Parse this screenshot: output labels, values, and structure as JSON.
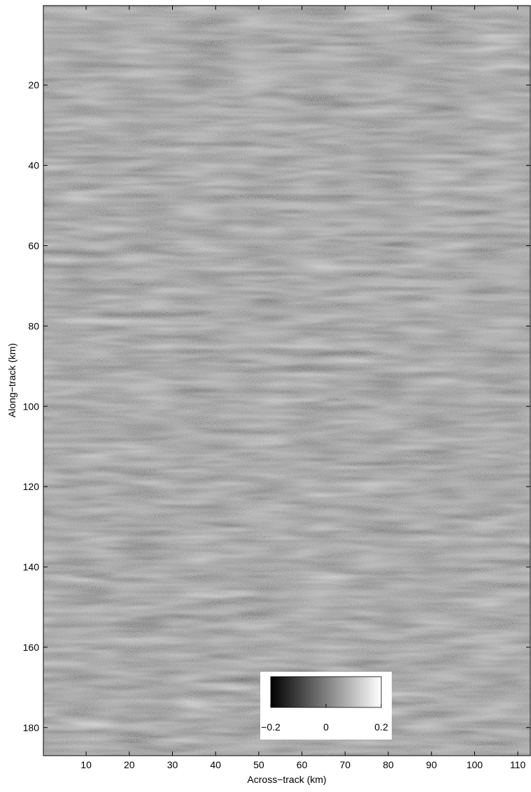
{
  "chart_data": {
    "type": "heatmap",
    "xlabel": "Across−track (km)",
    "ylabel": "Along−track (km)",
    "xlim": [
      0.1,
      112.9
    ],
    "ylim": [
      0.2,
      187
    ],
    "xticks": [
      10,
      20,
      30,
      40,
      50,
      60,
      70,
      80,
      90,
      100,
      110
    ],
    "yticks": [
      20,
      40,
      60,
      80,
      100,
      120,
      140,
      160,
      180
    ],
    "y_inverted": true,
    "colormap": [
      "#000000",
      "#ffffff"
    ],
    "clim": [
      -0.2,
      0.2
    ],
    "colorbar_ticks": [
      {
        "value": -0.2,
        "label": "−0.2"
      },
      0,
      0.2
    ]
  }
}
